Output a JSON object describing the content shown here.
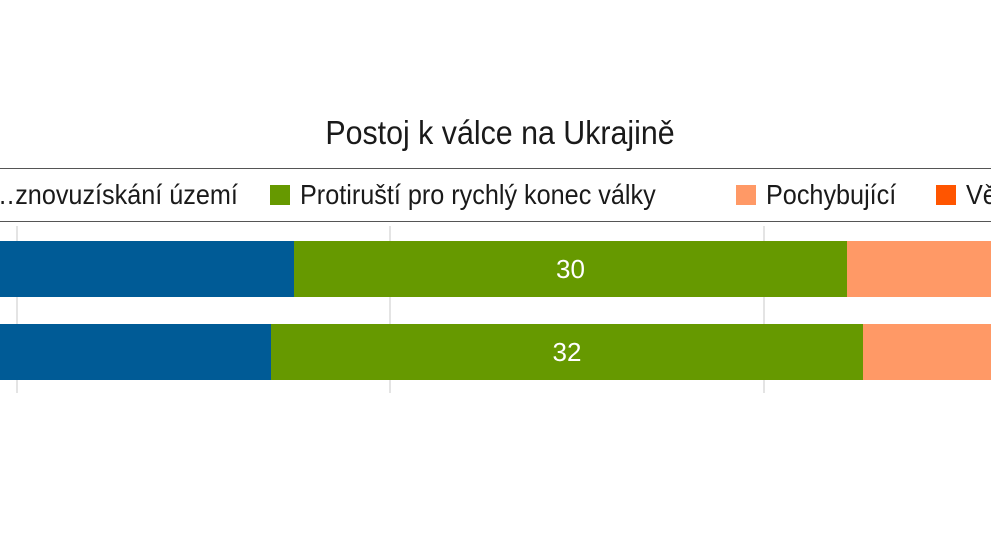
{
  "chart_data": {
    "type": "bar",
    "orientation": "horizontal",
    "stacked": true,
    "title": "Postoj k válce na Ukrajině",
    "categories": [
      "",
      ""
    ],
    "series": [
      {
        "name": "…znovuzískání území",
        "color": "#005b96",
        "values": [
          null,
          null
        ]
      },
      {
        "name": "Protiruští pro rychlý konec války",
        "color": "#669900",
        "values": [
          30,
          32
        ]
      },
      {
        "name": "Pochybující",
        "color": "#ff9966",
        "values": [
          null,
          null
        ]
      },
      {
        "name": "Vě…",
        "color": "#ff5500",
        "values": [
          null,
          null
        ]
      }
    ],
    "data_labels": [
      "30",
      "32"
    ],
    "grid": true,
    "legend_position": "top"
  }
}
